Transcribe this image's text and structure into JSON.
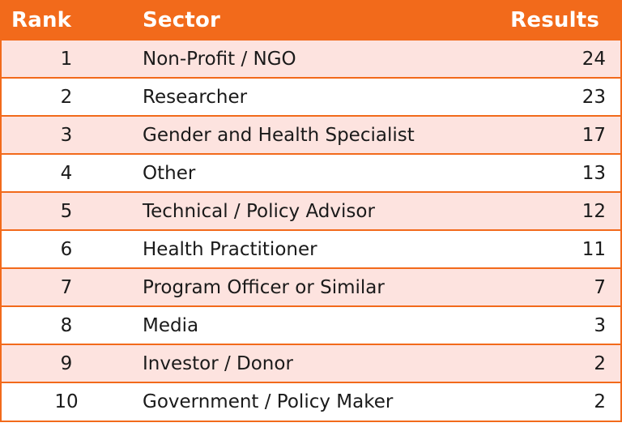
{
  "header": {
    "rank": "Rank",
    "sector": "Sector",
    "results": "Results"
  },
  "rows": [
    {
      "rank": "1",
      "sector": "Non-Profit / NGO",
      "results": "24"
    },
    {
      "rank": "2",
      "sector": "Researcher",
      "results": "23"
    },
    {
      "rank": "3",
      "sector": "Gender and Health Specialist",
      "results": "17"
    },
    {
      "rank": "4",
      "sector": "Other",
      "results": "13"
    },
    {
      "rank": "5",
      "sector": "Technical / Policy Advisor",
      "results": "12"
    },
    {
      "rank": "6",
      "sector": "Health Practitioner",
      "results": "11"
    },
    {
      "rank": "7",
      "sector": "Program Officer or Similar",
      "results": "7"
    },
    {
      "rank": "8",
      "sector": "Media",
      "results": "3"
    },
    {
      "rank": "9",
      "sector": "Investor / Donor",
      "results": "2"
    },
    {
      "rank": "10",
      "sector": "Government / Policy Maker",
      "results": "2"
    }
  ],
  "colors": {
    "accent": "#f26a1b",
    "row_shade": "#fde3df",
    "row_plain": "#ffffff"
  }
}
